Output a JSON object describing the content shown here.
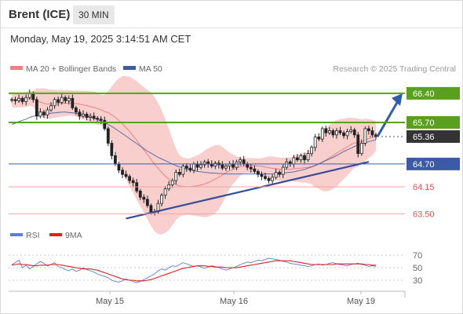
{
  "header": {
    "instrument": "Brent (ICE)",
    "timeframe": "30 MIN"
  },
  "timestamp": "Monday, May 19, 2025 3:14:51 AM CET",
  "legend": {
    "ma20_bb": "MA 20 + Bollinger Bands",
    "ma50": "MA 50",
    "copyright": "Research © 2025 Trading Central"
  },
  "rsi_legend": {
    "rsi": "RSI",
    "ma9": "9MA"
  },
  "colors": {
    "up_candle": "#ffffff",
    "down_candle": "#222222",
    "ma20": "#f08080",
    "bollinger_fill": "#f7c7c4",
    "ma50": "#3c5aa6",
    "resistance": "#5aa01e",
    "support": "#3c5aa6",
    "target": "#f4a3a3",
    "trendline": "#334d99",
    "arrow": "#2f5ea8",
    "rsi": "#5b7fd6",
    "rsi_ma": "#e02020"
  },
  "chart_data": [
    {
      "type": "candlestick",
      "x_labels": [
        "May 15",
        "May 16",
        "May 19"
      ],
      "ylim": [
        63.3,
        66.7
      ],
      "current_price": 65.36,
      "levels": [
        {
          "value": 66.4,
          "label": "66.40",
          "kind": "resistance",
          "style": "filled"
        },
        {
          "value": 65.7,
          "label": "65.70",
          "kind": "resistance",
          "style": "filled"
        },
        {
          "value": 65.36,
          "label": "65.36",
          "kind": "last",
          "style": "filled"
        },
        {
          "value": 64.7,
          "label": "64.70",
          "kind": "pivot",
          "style": "filled"
        },
        {
          "value": 64.15,
          "label": "64.15",
          "kind": "support",
          "style": "text"
        },
        {
          "value": 63.5,
          "label": "63.50",
          "kind": "support",
          "style": "text"
        }
      ],
      "close_values": [
        66.25,
        66.22,
        66.28,
        66.2,
        66.3,
        66.4,
        66.25,
        65.85,
        65.95,
        65.88,
        66.0,
        66.1,
        66.25,
        66.18,
        66.3,
        66.22,
        66.28,
        66.05,
        65.95,
        65.85,
        65.9,
        65.82,
        65.85,
        65.8,
        65.78,
        65.75,
        65.55,
        65.2,
        64.9,
        64.7,
        64.55,
        64.45,
        64.4,
        64.3,
        64.25,
        64.05,
        63.9,
        63.85,
        63.7,
        63.55,
        63.55,
        63.75,
        63.95,
        64.1,
        64.2,
        64.3,
        64.5,
        64.45,
        64.65,
        64.6,
        64.55,
        64.7,
        64.62,
        64.68,
        64.75,
        64.7,
        64.65,
        64.72,
        64.68,
        64.6,
        64.65,
        64.7,
        64.62,
        64.75,
        64.8,
        64.7,
        64.62,
        64.58,
        64.52,
        64.45,
        64.4,
        64.35,
        64.3,
        64.38,
        64.5,
        64.45,
        64.62,
        64.75,
        64.7,
        64.85,
        64.8,
        64.9,
        64.8,
        64.95,
        65.1,
        65.35,
        65.3,
        65.55,
        65.45,
        65.5,
        65.4,
        65.5,
        65.45,
        65.38,
        65.48,
        65.52,
        65.4,
        64.95,
        65.2,
        65.55,
        65.5,
        65.4,
        65.36
      ],
      "ma50_values": [
        65.65,
        65.68,
        65.72,
        65.75,
        65.78,
        65.82,
        65.85,
        65.86,
        65.88,
        65.9,
        65.91,
        65.92,
        65.93,
        65.94,
        65.95,
        65.95,
        65.94,
        65.93,
        65.92,
        65.9,
        65.88,
        65.86,
        65.83,
        65.8,
        65.77,
        65.73,
        65.69,
        65.65,
        65.6,
        65.55,
        65.49,
        65.43,
        65.37,
        65.31,
        65.25,
        65.19,
        65.13,
        65.07,
        65.01,
        64.96,
        64.91,
        64.86,
        64.82,
        64.78,
        64.74,
        64.7,
        64.66,
        64.63,
        64.6,
        64.58,
        64.56,
        64.54,
        64.52,
        64.51,
        64.5,
        64.49,
        64.48,
        64.48,
        64.47,
        64.47,
        64.46,
        64.46,
        64.46,
        64.46,
        64.46,
        64.46,
        64.46,
        64.46,
        64.46,
        64.46,
        64.46,
        64.46,
        64.46,
        64.46,
        64.47,
        64.47,
        64.48,
        64.49,
        64.5,
        64.51,
        64.53,
        64.55,
        64.57,
        64.6,
        64.63,
        64.66,
        64.7,
        64.74,
        64.78,
        64.82,
        64.86,
        64.9,
        64.95,
        65.0,
        65.04,
        65.08,
        65.12,
        65.15,
        65.18,
        65.21,
        65.24,
        65.26,
        65.28
      ],
      "projection": {
        "from": 65.36,
        "to": 66.4
      },
      "trendline": {
        "from": 63.5,
        "to": 64.75
      }
    },
    {
      "type": "line",
      "title": "RSI",
      "yticks": [
        70,
        50,
        30
      ],
      "ylim": [
        20,
        80
      ],
      "series": [
        {
          "name": "RSI",
          "values": [
            55,
            58,
            62,
            50,
            54,
            48,
            52,
            56,
            60,
            57,
            53,
            55,
            58,
            52,
            50,
            47,
            45,
            48,
            44,
            46,
            50,
            47,
            45,
            43,
            40,
            38,
            36,
            34,
            30,
            28,
            27,
            29,
            32,
            30,
            28,
            26,
            28,
            31,
            34,
            37,
            40,
            45,
            48,
            46,
            50,
            53,
            52,
            55,
            58,
            56,
            54,
            52,
            53,
            51,
            49,
            51,
            53,
            52,
            50,
            48,
            46,
            48,
            50,
            52,
            55,
            57,
            59,
            58,
            60,
            62,
            61,
            63,
            65,
            64,
            63,
            62,
            60,
            59,
            57,
            56,
            55,
            54,
            53,
            52,
            53,
            55,
            56,
            54,
            55,
            57,
            58,
            56,
            55,
            54,
            53,
            55,
            56,
            57,
            55,
            54,
            52,
            53,
            52
          ]
        },
        {
          "name": "9MA",
          "values": [
            54,
            55,
            56,
            55,
            55,
            54,
            53,
            53,
            54,
            54,
            54,
            55,
            55,
            55,
            54,
            53,
            52,
            51,
            50,
            49,
            48,
            48,
            48,
            47,
            46,
            44,
            42,
            40,
            38,
            36,
            34,
            32,
            31,
            30,
            30,
            29,
            29,
            29,
            30,
            31,
            33,
            35,
            37,
            39,
            41,
            43,
            45,
            47,
            49,
            50,
            51,
            52,
            53,
            53,
            53,
            52,
            52,
            51,
            51,
            51,
            50,
            50,
            50,
            50,
            51,
            52,
            53,
            54,
            55,
            56,
            57,
            58,
            59,
            60,
            61,
            61,
            61,
            61,
            61,
            60,
            59,
            58,
            57,
            56,
            55,
            55,
            55,
            55,
            55,
            55,
            55,
            56,
            56,
            56,
            56,
            56,
            56,
            56,
            56,
            55,
            55,
            54,
            54
          ]
        }
      ]
    }
  ]
}
